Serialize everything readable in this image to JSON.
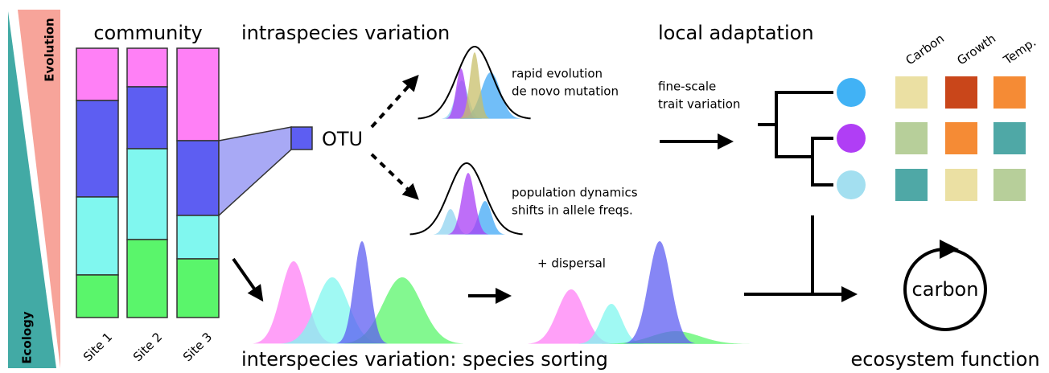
{
  "axis_labels": {
    "evolution": "Evolution",
    "ecology": "Ecology"
  },
  "community": {
    "title": "community",
    "sites": [
      "Site 1",
      "Site 2",
      "Site 3"
    ]
  },
  "intraspecies": {
    "title": "intraspecies variation",
    "otu": "OTU",
    "top_note": [
      "rapid evolution",
      "de novo mutation"
    ],
    "bottom_note": [
      "population dynamics",
      "shifts in allele freqs."
    ]
  },
  "interspecies": {
    "title": "interspecies variation: species sorting",
    "dispersal": "+ dispersal"
  },
  "local_adaptation": {
    "title": "local adaptation",
    "note": [
      "fine-scale",
      "trait variation"
    ],
    "traits": [
      "Carbon",
      "Growth",
      "Temp."
    ]
  },
  "ecosystem_function": {
    "title": "ecosystem function",
    "cycle_label": "carbon"
  }
}
